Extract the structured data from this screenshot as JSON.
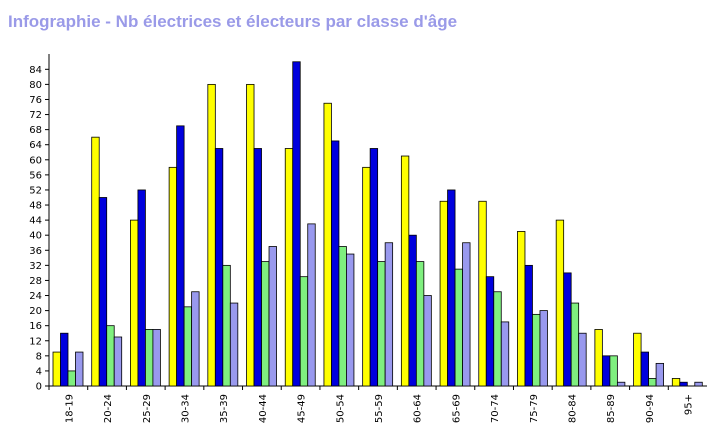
{
  "chart_data": {
    "type": "bar",
    "title": "Infographie - Nb électrices et électeurs par classe d'âge",
    "xlabel": "",
    "ylabel": "",
    "ylim": [
      0,
      87
    ],
    "yticks": [
      0,
      4,
      8,
      12,
      16,
      20,
      24,
      28,
      32,
      36,
      40,
      44,
      48,
      52,
      56,
      60,
      64,
      68,
      72,
      76,
      80,
      84
    ],
    "grid": false,
    "legend": "none",
    "categories": [
      "18-19",
      "20-24",
      "25-29",
      "30-34",
      "35-39",
      "40-44",
      "45-49",
      "50-54",
      "55-59",
      "60-64",
      "65-69",
      "70-74",
      "75-79",
      "80-84",
      "85-89",
      "90-94",
      "95+"
    ],
    "series": [
      {
        "color": "#ffff00",
        "values": [
          9,
          66,
          44,
          58,
          80,
          80,
          63,
          75,
          58,
          61,
          49,
          49,
          41,
          44,
          15,
          14,
          2
        ]
      },
      {
        "color": "#0000dd",
        "values": [
          14,
          50,
          52,
          69,
          63,
          63,
          86,
          65,
          63,
          40,
          52,
          29,
          32,
          30,
          8,
          9,
          1
        ]
      },
      {
        "color": "#7fef7f",
        "values": [
          4,
          16,
          15,
          21,
          32,
          33,
          29,
          37,
          33,
          33,
          31,
          25,
          19,
          22,
          8,
          2,
          0
        ]
      },
      {
        "color": "#9999ee",
        "values": [
          9,
          13,
          15,
          25,
          22,
          37,
          43,
          35,
          38,
          24,
          38,
          17,
          20,
          14,
          1,
          6,
          1
        ]
      }
    ]
  }
}
